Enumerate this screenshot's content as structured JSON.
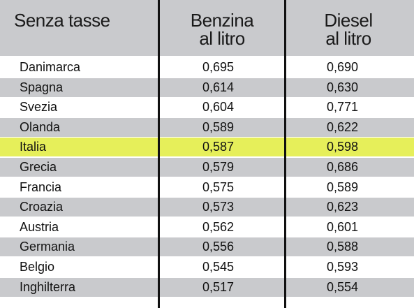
{
  "table": {
    "header": [
      "Senza tasse",
      "Benzina",
      "al litro",
      "Diesel",
      "al litro"
    ],
    "rows": [
      [
        "Danimarca",
        "0,695",
        "0,690"
      ],
      [
        "Spagna",
        "0,614",
        "0,630"
      ],
      [
        "Svezia",
        "0,604",
        "0,771"
      ],
      [
        "Olanda",
        "0,589",
        "0,622"
      ],
      [
        "Italia",
        "0,587",
        "0,598"
      ],
      [
        "Grecia",
        "0,579",
        "0,686"
      ],
      [
        "Francia",
        "0,575",
        "0,589"
      ],
      [
        "Croazia",
        "0,573",
        "0,623"
      ],
      [
        "Austria",
        "0,562",
        "0,601"
      ],
      [
        "Germania",
        "0,556",
        "0,588"
      ],
      [
        "Belgio",
        "0,545",
        "0,593"
      ],
      [
        "Inghilterra",
        "0,517",
        "0,554"
      ]
    ],
    "highlight_row": 4,
    "highlight_color": "#e6ef5a",
    "stripe_color": "#c9cacd"
  }
}
